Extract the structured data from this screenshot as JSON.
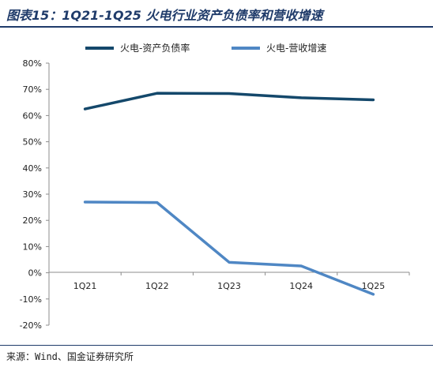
{
  "header": {
    "title": "图表15：1Q21-1Q25 火电行业资产负债率和营收增速"
  },
  "footer": {
    "source": "来源：Wind、国金证券研究所"
  },
  "colors": {
    "title": "#1f3b6a",
    "series1": "#14486b",
    "series2": "#4f87c4",
    "axis": "#8c8c8c"
  },
  "chart_data": {
    "type": "line",
    "categories": [
      "1Q21",
      "1Q22",
      "1Q23",
      "1Q24",
      "1Q25"
    ],
    "series": [
      {
        "name": "火电-资产负债率",
        "values": [
          62.5,
          68.5,
          68.4,
          66.8,
          66.0
        ]
      },
      {
        "name": "火电-营收增速",
        "values": [
          27.0,
          26.8,
          4.0,
          2.6,
          -8.2
        ]
      }
    ],
    "y_ticks": [
      "-20%",
      "-10%",
      "0%",
      "10%",
      "20%",
      "30%",
      "40%",
      "50%",
      "60%",
      "70%",
      "80%"
    ],
    "ylim": [
      -20,
      80
    ],
    "y_unit": "%",
    "grid": false,
    "legend_position": "top"
  }
}
